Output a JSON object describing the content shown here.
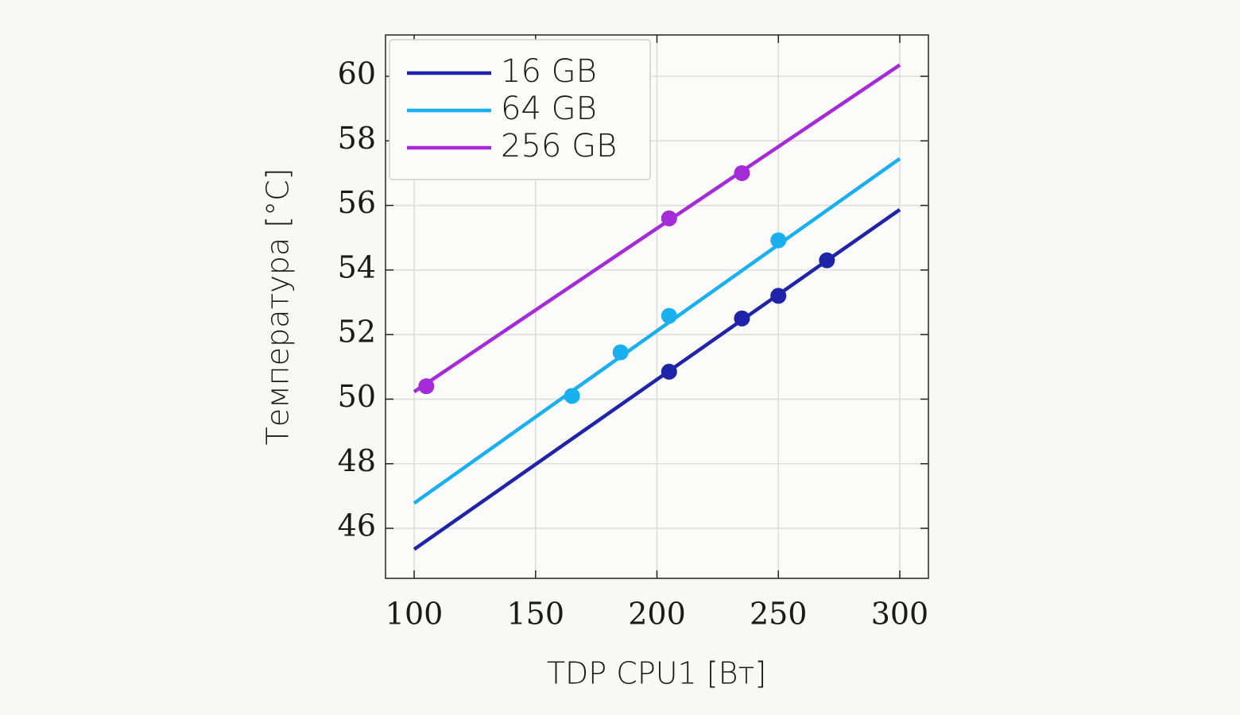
{
  "chart_data": {
    "type": "scatter",
    "xlabel": "TDP CPU1 [Вт]",
    "ylabel": "Температура [°C]",
    "xlim": [
      88.2,
      311.8
    ],
    "xticks": [
      100,
      150,
      200,
      250,
      300
    ],
    "ylim": [
      44.45,
      61.28
    ],
    "yticks": [
      46,
      48,
      50,
      52,
      54,
      56,
      58,
      60
    ],
    "grid": true,
    "legend": "upper-left",
    "series": [
      {
        "name": "16 GB",
        "color": "#1f23a8",
        "x": [
          205,
          235,
          250,
          270
        ],
        "values": [
          50.85,
          52.5,
          53.2,
          54.3
        ],
        "fit": {
          "x": [
            100,
            300
          ],
          "values": [
            45.35,
            55.87
          ]
        }
      },
      {
        "name": "64 GB",
        "color": "#1ab0f0",
        "x": [
          165,
          185,
          205,
          250
        ],
        "values": [
          50.1,
          51.45,
          52.58,
          54.92
        ],
        "fit": {
          "x": [
            100,
            300
          ],
          "values": [
            46.78,
            57.45
          ]
        }
      },
      {
        "name": "256 GB",
        "color": "#a62bd8",
        "x": [
          105,
          205,
          235
        ],
        "values": [
          50.4,
          55.6,
          57.0
        ],
        "fit": {
          "x": [
            100,
            300
          ],
          "values": [
            50.23,
            60.35
          ]
        }
      }
    ]
  }
}
